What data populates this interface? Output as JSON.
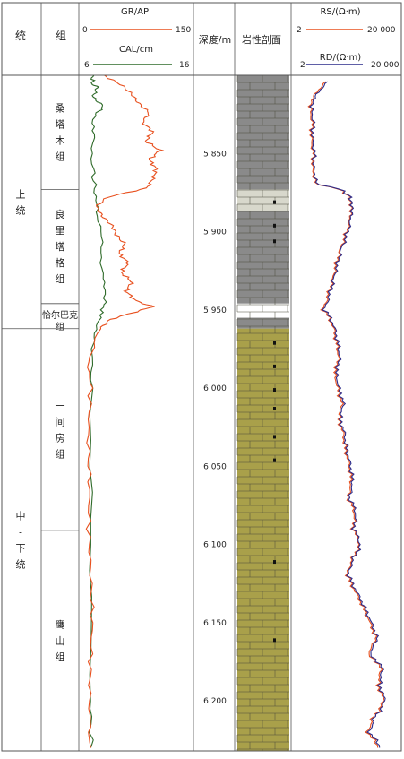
{
  "headers": {
    "system": "统",
    "formation": "组",
    "depth": "深度/m",
    "lithology": "岩性剖面"
  },
  "tracks": {
    "gr": {
      "label": "GR/API",
      "min": "0",
      "max": "150",
      "color": "#e8501e"
    },
    "cal": {
      "label": "CAL/cm",
      "min": "6",
      "max": "16",
      "color": "#2f6b2a"
    },
    "rs": {
      "label": "RS/(Ω·m)",
      "min": "2",
      "max": "20 000",
      "color": "#e8501e"
    },
    "rd": {
      "label": "RD/(Ω·m)",
      "min": "2",
      "max": "20 000",
      "color": "#2a2a8a"
    }
  },
  "systems": [
    {
      "name": "上统",
      "top": 5800,
      "bottom": 5962
    },
    {
      "name": "中－下统",
      "top": 5962,
      "bottom": 6232
    }
  ],
  "formations": [
    {
      "name": "桑塔木组",
      "top": 5800,
      "bottom": 5873
    },
    {
      "name": "良里塔格组",
      "top": 5873,
      "bottom": 5946
    },
    {
      "name": "恰尔巴克组",
      "top": 5946,
      "bottom": 5962
    },
    {
      "name": "一间房组",
      "top": 5962,
      "bottom": 6091
    },
    {
      "name": "鹰山组",
      "top": 6091,
      "bottom": 6232
    }
  ],
  "depth_ticks": [
    "5 850",
    "5 900",
    "5 950",
    "6 000",
    "6 050",
    "6 100",
    "6 150",
    "6 200"
  ],
  "lithology_colors": {
    "mudstone": "#8a8a8a",
    "light_limestone": "#d8d8cc",
    "limestone": "#a9a04a"
  },
  "chart_data": {
    "type": "line",
    "ylabel": "深度/m",
    "ylim": [
      5800,
      6232
    ],
    "series": [
      {
        "name": "GR/API",
        "xlim": [
          0,
          150
        ],
        "x_scale": "linear",
        "points": [
          [
            5800,
            30
          ],
          [
            5806,
            55
          ],
          [
            5812,
            70
          ],
          [
            5818,
            80
          ],
          [
            5824,
            95
          ],
          [
            5830,
            85
          ],
          [
            5836,
            100
          ],
          [
            5842,
            90
          ],
          [
            5848,
            110
          ],
          [
            5854,
            95
          ],
          [
            5860,
            105
          ],
          [
            5866,
            100
          ],
          [
            5872,
            92
          ],
          [
            5878,
            35
          ],
          [
            5884,
            20
          ],
          [
            5890,
            28
          ],
          [
            5896,
            42
          ],
          [
            5902,
            48
          ],
          [
            5908,
            60
          ],
          [
            5914,
            52
          ],
          [
            5920,
            65
          ],
          [
            5926,
            55
          ],
          [
            5932,
            70
          ],
          [
            5938,
            62
          ],
          [
            5944,
            75
          ],
          [
            5948,
            100
          ],
          [
            5952,
            70
          ],
          [
            5956,
            40
          ],
          [
            5962,
            25
          ],
          [
            5980,
            10
          ],
          [
            6000,
            12
          ],
          [
            6030,
            8
          ],
          [
            6060,
            10
          ],
          [
            6090,
            9
          ],
          [
            6120,
            12
          ],
          [
            6150,
            14
          ],
          [
            6180,
            11
          ],
          [
            6210,
            10
          ],
          [
            6230,
            12
          ]
        ]
      },
      {
        "name": "CAL/cm",
        "xlim": [
          6,
          16
        ],
        "x_scale": "linear",
        "points": [
          [
            5800,
            7.0
          ],
          [
            5805,
            6.9
          ],
          [
            5808,
            7.4
          ],
          [
            5814,
            7.0
          ],
          [
            5820,
            8.0
          ],
          [
            5826,
            7.1
          ],
          [
            5840,
            7.0
          ],
          [
            5860,
            7.0
          ],
          [
            5875,
            7.2
          ],
          [
            5890,
            7.5
          ],
          [
            5910,
            7.8
          ],
          [
            5930,
            8.0
          ],
          [
            5945,
            8.2
          ],
          [
            5955,
            7.6
          ],
          [
            5970,
            7.0
          ],
          [
            6000,
            6.8
          ],
          [
            6100,
            6.8
          ],
          [
            6200,
            6.8
          ],
          [
            6230,
            6.8
          ]
        ]
      },
      {
        "name": "RS/(Ω·m)",
        "xlim": [
          2,
          20000
        ],
        "x_scale": "log",
        "points": [
          [
            5804,
            30
          ],
          [
            5812,
            12
          ],
          [
            5820,
            8
          ],
          [
            5830,
            10
          ],
          [
            5840,
            9
          ],
          [
            5850,
            11
          ],
          [
            5860,
            10
          ],
          [
            5870,
            14
          ],
          [
            5878,
            250
          ],
          [
            5884,
            300
          ],
          [
            5890,
            280
          ],
          [
            5900,
            200
          ],
          [
            5910,
            120
          ],
          [
            5920,
            80
          ],
          [
            5930,
            60
          ],
          [
            5940,
            40
          ],
          [
            5950,
            25
          ],
          [
            5960,
            60
          ],
          [
            5970,
            80
          ],
          [
            5980,
            100
          ],
          [
            5990,
            70
          ],
          [
            6000,
            90
          ],
          [
            6010,
            130
          ],
          [
            6020,
            100
          ],
          [
            6030,
            150
          ],
          [
            6040,
            180
          ],
          [
            6050,
            250
          ],
          [
            6060,
            300
          ],
          [
            6070,
            220
          ],
          [
            6080,
            400
          ],
          [
            6090,
            350
          ],
          [
            6100,
            600
          ],
          [
            6110,
            300
          ],
          [
            6120,
            200
          ],
          [
            6130,
            400
          ],
          [
            6140,
            800
          ],
          [
            6150,
            1500
          ],
          [
            6160,
            2500
          ],
          [
            6170,
            1200
          ],
          [
            6180,
            4000
          ],
          [
            6190,
            3000
          ],
          [
            6200,
            5000
          ],
          [
            6210,
            2000
          ],
          [
            6220,
            1200
          ],
          [
            6230,
            3000
          ]
        ]
      },
      {
        "name": "RD/(Ω·m)",
        "xlim": [
          2,
          20000
        ],
        "x_scale": "log",
        "points": [
          [
            5804,
            35
          ],
          [
            5812,
            14
          ],
          [
            5820,
            9
          ],
          [
            5830,
            11
          ],
          [
            5840,
            10
          ],
          [
            5850,
            12
          ],
          [
            5860,
            11
          ],
          [
            5870,
            15
          ],
          [
            5878,
            270
          ],
          [
            5884,
            320
          ],
          [
            5890,
            300
          ],
          [
            5900,
            220
          ],
          [
            5910,
            130
          ],
          [
            5920,
            90
          ],
          [
            5930,
            65
          ],
          [
            5940,
            45
          ],
          [
            5950,
            28
          ],
          [
            5960,
            65
          ],
          [
            5970,
            90
          ],
          [
            5980,
            110
          ],
          [
            5990,
            80
          ],
          [
            6000,
            100
          ],
          [
            6010,
            150
          ],
          [
            6020,
            110
          ],
          [
            6030,
            170
          ],
          [
            6040,
            200
          ],
          [
            6050,
            280
          ],
          [
            6060,
            340
          ],
          [
            6070,
            250
          ],
          [
            6080,
            450
          ],
          [
            6090,
            380
          ],
          [
            6100,
            650
          ],
          [
            6110,
            330
          ],
          [
            6120,
            220
          ],
          [
            6130,
            450
          ],
          [
            6140,
            900
          ],
          [
            6150,
            1700
          ],
          [
            6160,
            2800
          ],
          [
            6170,
            1400
          ],
          [
            6180,
            4500
          ],
          [
            6190,
            3400
          ],
          [
            6200,
            5600
          ],
          [
            6210,
            2300
          ],
          [
            6220,
            1400
          ],
          [
            6230,
            3500
          ]
        ]
      }
    ]
  }
}
